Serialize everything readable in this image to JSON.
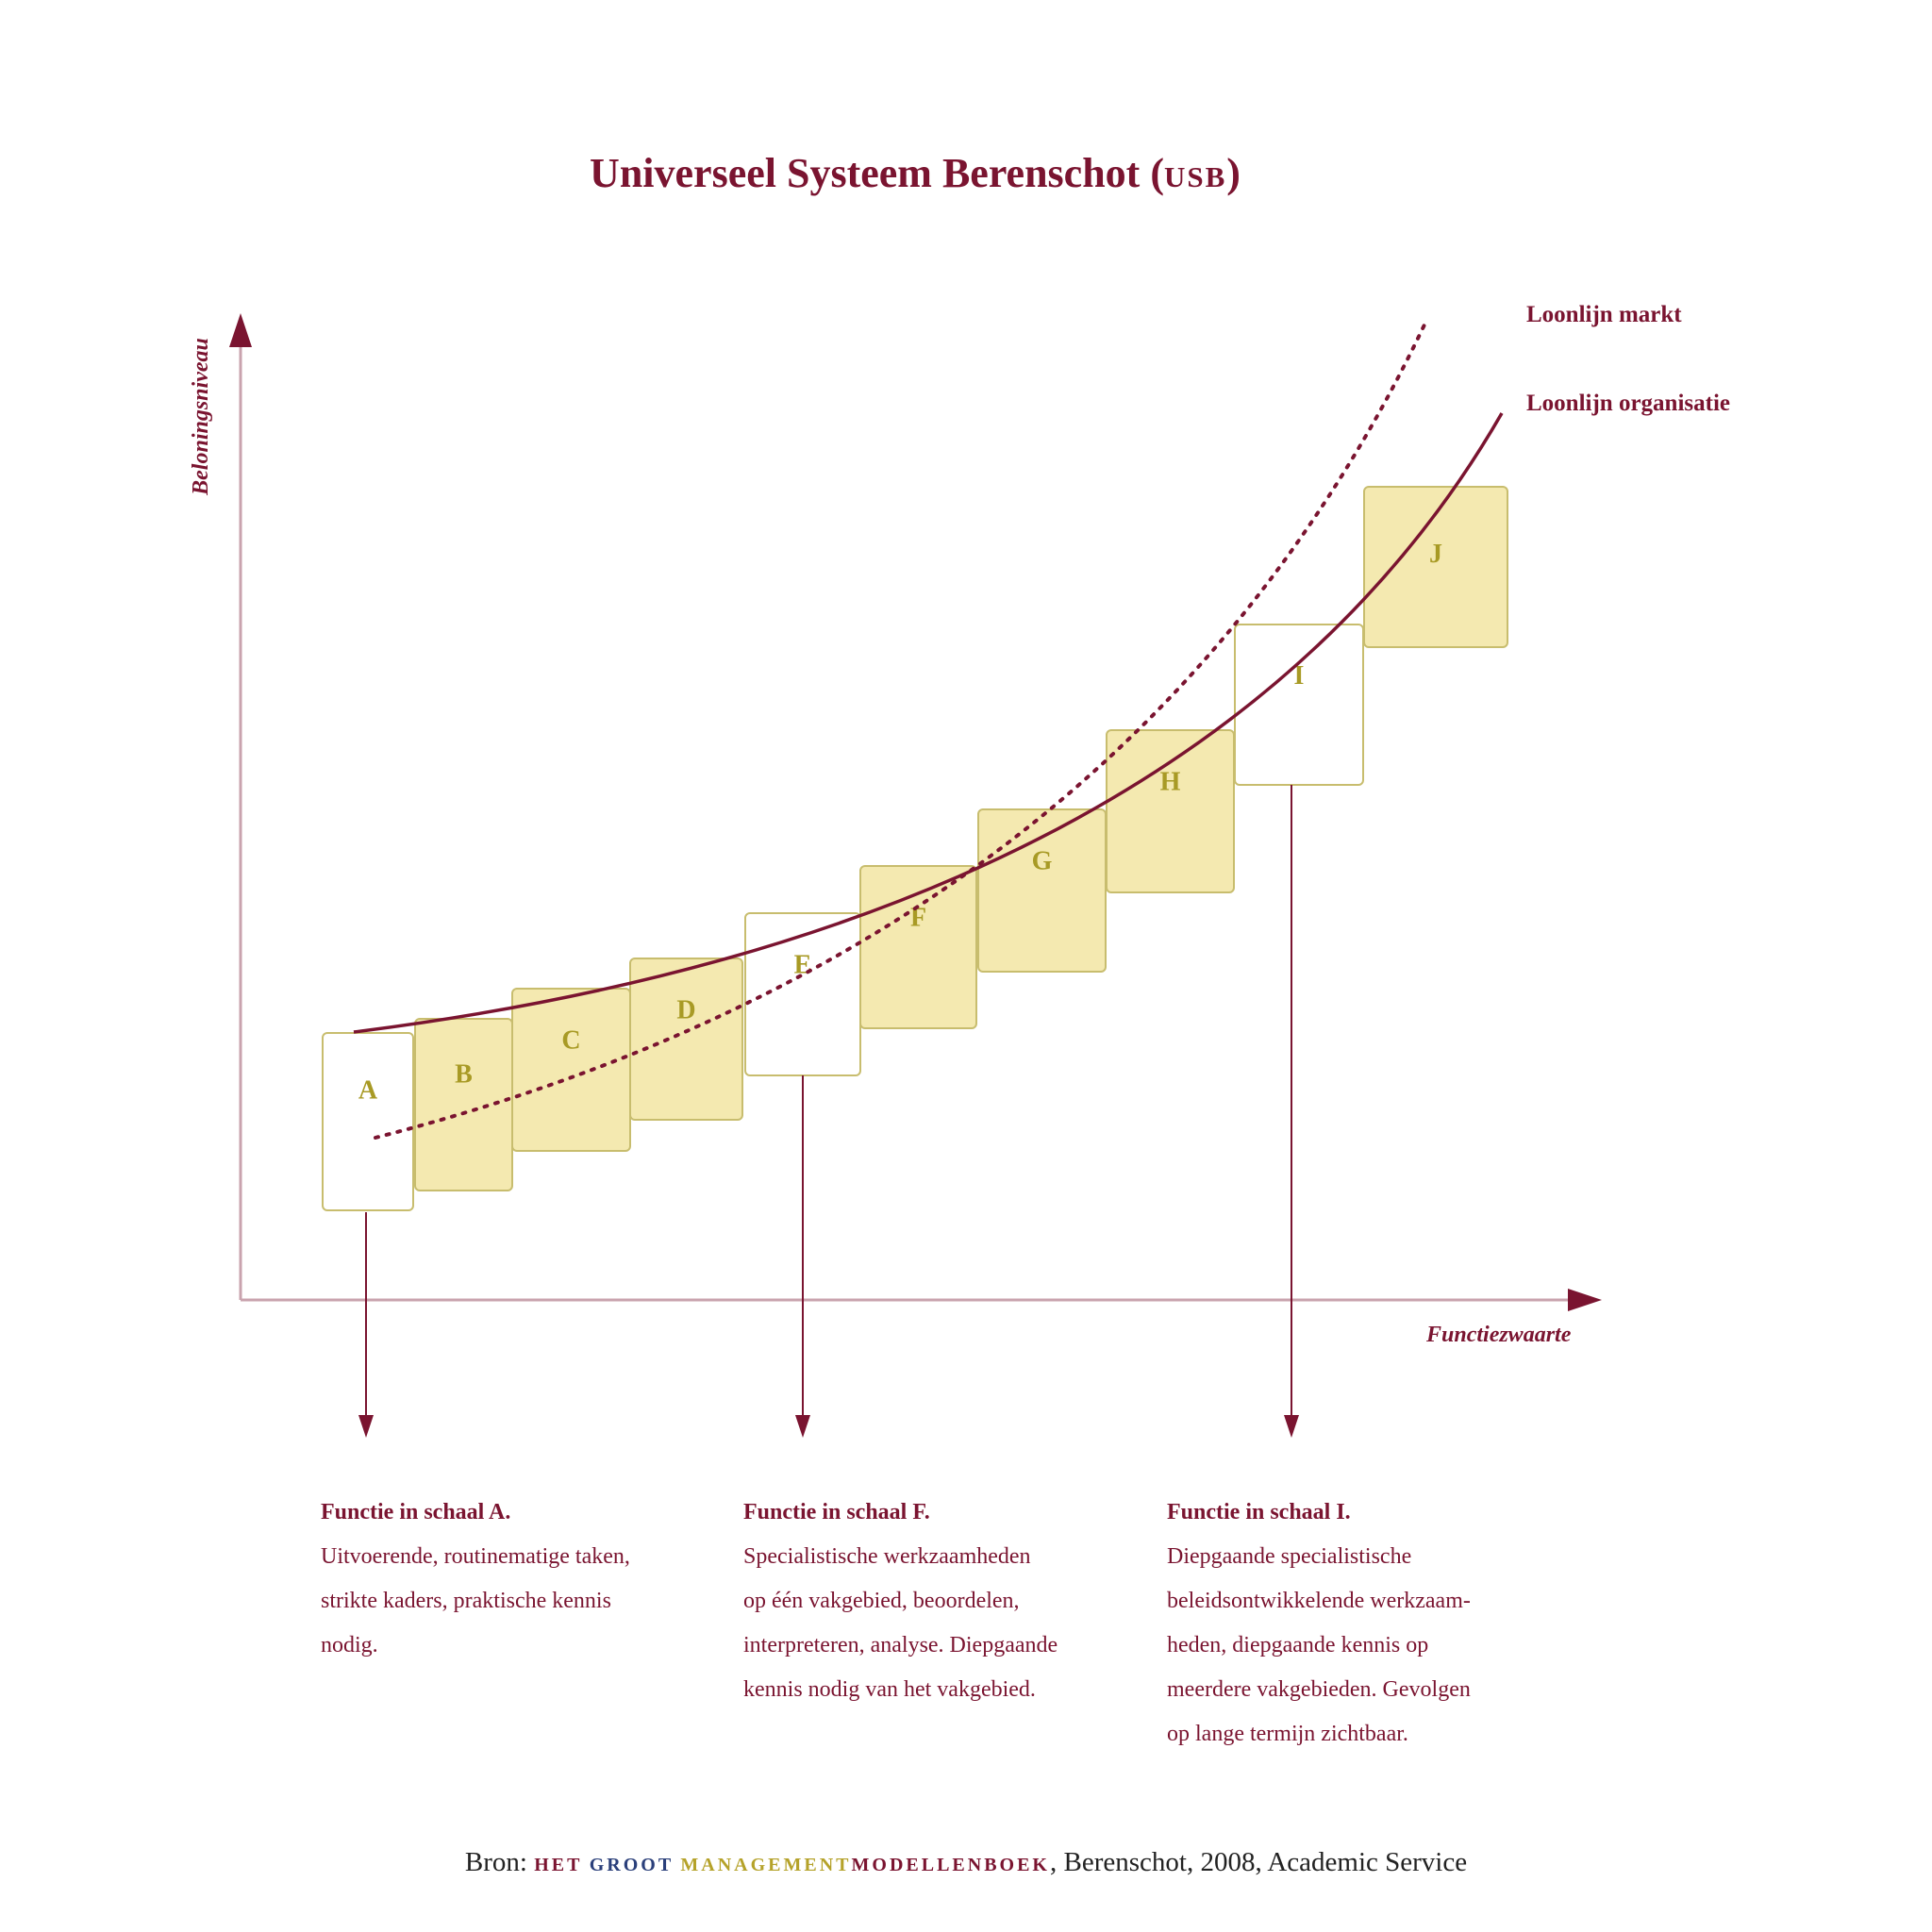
{
  "title": {
    "main": "Universeel Systeem Berenschot (",
    "abbr": "usb",
    "close": ")"
  },
  "axes": {
    "y_label": "Beloningsniveau",
    "x_label": "Functiezwaarte"
  },
  "legend": {
    "market": "Loonlijn markt",
    "organisation": "Loonlijn organisatie"
  },
  "colors": {
    "burgundy": "#7a1430",
    "box_fill": "#f4e9b0",
    "box_stroke": "#c8bd6e",
    "letter": "#a89a25",
    "axis": "#c9a3ae"
  },
  "scales": [
    {
      "label": "A",
      "filled": false
    },
    {
      "label": "B",
      "filled": true
    },
    {
      "label": "C",
      "filled": true
    },
    {
      "label": "D",
      "filled": true
    },
    {
      "label": "E",
      "filled": false
    },
    {
      "label": "F",
      "filled": true
    },
    {
      "label": "G",
      "filled": true
    },
    {
      "label": "H",
      "filled": true
    },
    {
      "label": "I",
      "filled": false
    },
    {
      "label": "J",
      "filled": true
    }
  ],
  "descriptions": [
    {
      "title": "Functie in schaal A.",
      "lines": [
        "Uitvoerende, routinematige taken,",
        "strikte kaders, praktische kennis",
        "nodig."
      ]
    },
    {
      "title": "Functie in schaal F.",
      "lines": [
        "Specialistische werkzaamheden",
        "op één vakgebied, beoordelen,",
        "interpreteren, analyse. Diepgaande",
        "kennis nodig van het vakgebied."
      ]
    },
    {
      "title": "Functie in schaal I.",
      "lines": [
        "Diepgaande specialistische",
        "beleidsontwikkelende werkzaam-",
        "heden, diepgaande kennis op",
        "meerdere vakgebieden. Gevolgen",
        "op lange termijn zichtbaar."
      ]
    }
  ],
  "source": {
    "prefix": "Bron: ",
    "book_het": "het",
    "book_groot": "groot",
    "book_management": "management",
    "book_modellenboek": "modellenboek",
    "suffix": ", Berenschot, 2008, Academic Service"
  }
}
